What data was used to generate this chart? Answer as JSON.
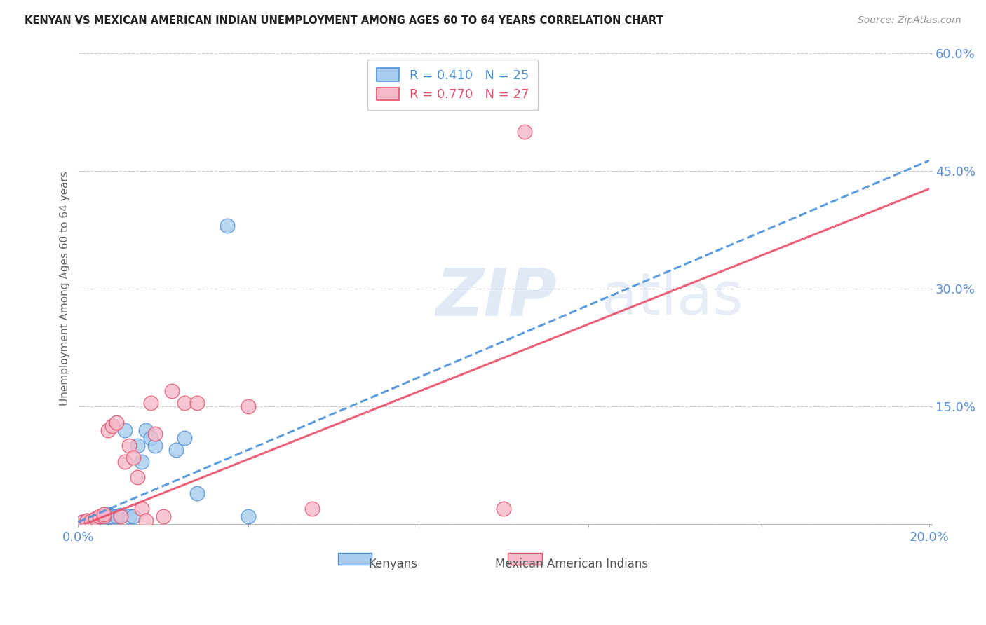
{
  "title": "KENYAN VS MEXICAN AMERICAN INDIAN UNEMPLOYMENT AMONG AGES 60 TO 64 YEARS CORRELATION CHART",
  "source": "Source: ZipAtlas.com",
  "ylabel": "Unemployment Among Ages 60 to 64 years",
  "xmin": 0.0,
  "xmax": 0.2,
  "ymin": 0.0,
  "ymax": 0.6,
  "yticks": [
    0.0,
    0.15,
    0.3,
    0.45,
    0.6
  ],
  "ytick_labels": [
    "",
    "15.0%",
    "30.0%",
    "45.0%",
    "60.0%"
  ],
  "xticks": [
    0.0,
    0.04,
    0.08,
    0.12,
    0.16,
    0.2
  ],
  "xtick_labels": [
    "0.0%",
    "",
    "",
    "",
    "",
    "20.0%"
  ],
  "kenyan_R": 0.41,
  "kenyan_N": 25,
  "mexican_R": 0.77,
  "mexican_N": 27,
  "kenyan_color": "#A8CCEE",
  "mexican_color": "#F5B8C8",
  "kenyan_line_color": "#4A90D9",
  "mexican_line_color": "#E8506A",
  "axis_color": "#5B8ED6",
  "grid_color": "#CCCCCC",
  "background_color": "#FFFFFF",
  "kenyan_line_slope": 2.3,
  "kenyan_line_intercept": 0.003,
  "mexican_line_slope": 2.15,
  "mexican_line_intercept": -0.003,
  "kenyan_x": [
    0.001,
    0.002,
    0.003,
    0.004,
    0.005,
    0.006,
    0.006,
    0.007,
    0.007,
    0.008,
    0.009,
    0.01,
    0.011,
    0.012,
    0.013,
    0.014,
    0.015,
    0.016,
    0.017,
    0.018,
    0.023,
    0.025,
    0.028,
    0.035,
    0.04
  ],
  "kenyan_y": [
    0.003,
    0.005,
    0.005,
    0.005,
    0.005,
    0.005,
    0.008,
    0.01,
    0.013,
    0.01,
    0.01,
    0.012,
    0.12,
    0.01,
    0.01,
    0.1,
    0.08,
    0.12,
    0.11,
    0.1,
    0.095,
    0.11,
    0.04,
    0.38,
    0.01
  ],
  "mexican_x": [
    0.001,
    0.002,
    0.003,
    0.004,
    0.005,
    0.006,
    0.006,
    0.007,
    0.008,
    0.009,
    0.01,
    0.011,
    0.012,
    0.013,
    0.014,
    0.015,
    0.016,
    0.017,
    0.018,
    0.02,
    0.022,
    0.025,
    0.028,
    0.04,
    0.055,
    0.1,
    0.105
  ],
  "mexican_y": [
    0.003,
    0.005,
    0.005,
    0.008,
    0.01,
    0.01,
    0.013,
    0.12,
    0.125,
    0.13,
    0.01,
    0.08,
    0.1,
    0.085,
    0.06,
    0.02,
    0.005,
    0.155,
    0.115,
    0.01,
    0.17,
    0.155,
    0.155,
    0.15,
    0.02,
    0.02,
    0.5
  ]
}
